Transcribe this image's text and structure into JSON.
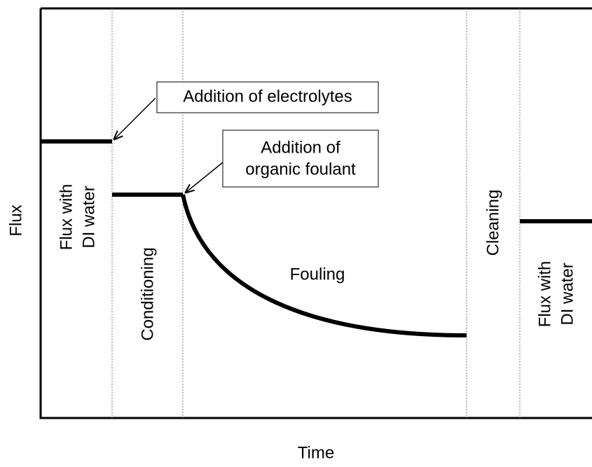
{
  "axes": {
    "y_label": "Flux",
    "x_label": "Time"
  },
  "phases": [
    {
      "lines": [
        "Flux with",
        "DI water"
      ]
    },
    {
      "lines": [
        "Conditioning"
      ]
    },
    {
      "lines": [
        "Fouling"
      ]
    },
    {
      "lines": [
        "Cleaning"
      ]
    },
    {
      "lines": [
        "Flux with",
        "DI water"
      ]
    }
  ],
  "callouts": [
    {
      "lines": [
        "Addition of electrolytes"
      ]
    },
    {
      "lines": [
        "Addition of",
        "organic foulant"
      ]
    }
  ]
}
